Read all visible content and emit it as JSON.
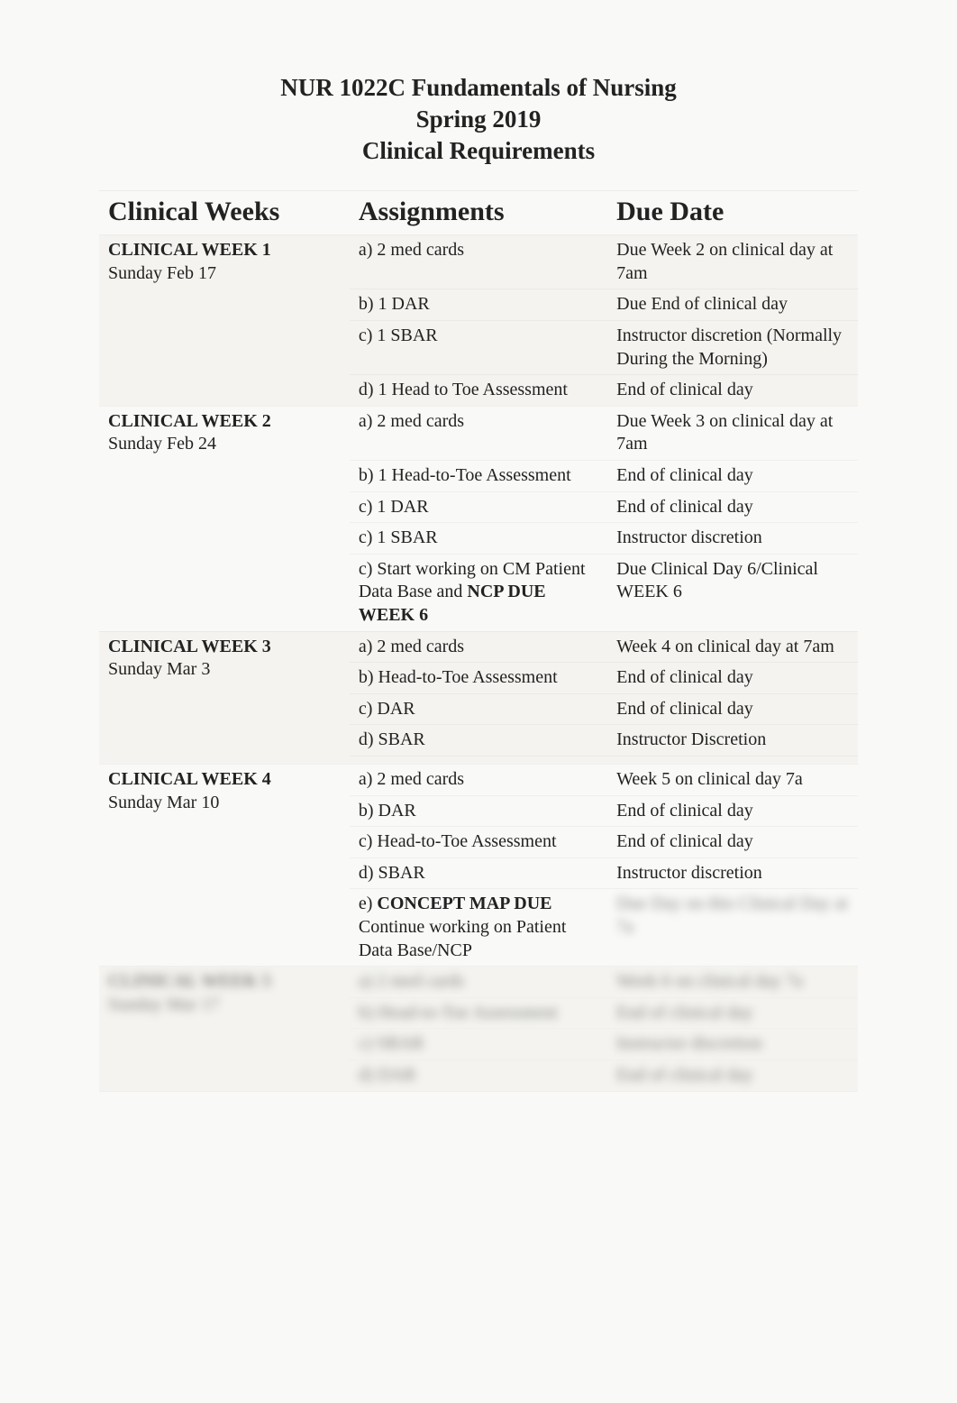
{
  "header": {
    "line1": "NUR 1022C Fundamentals of Nursing",
    "line2": "Spring 2019",
    "line3": "Clinical Requirements"
  },
  "columns": {
    "c1": "Clinical Weeks",
    "c2": "Assignments",
    "c3": "Due Date"
  },
  "weeks": {
    "w1": {
      "title": "CLINICAL WEEK 1",
      "date": "Sunday Feb 17",
      "rows": [
        {
          "a": "a) 2 med cards",
          "d": "Due Week 2 on clinical day at 7am"
        },
        {
          "a": "b) 1 DAR",
          "d": "Due End of clinical day"
        },
        {
          "a": "c) 1 SBAR",
          "d": "Instructor discretion (Normally During the Morning)"
        },
        {
          "a": "d) 1 Head to Toe Assessment",
          "d": "End of clinical day"
        }
      ]
    },
    "w2": {
      "title": "CLINICAL WEEK 2",
      "date": "Sunday Feb 24",
      "rows": [
        {
          "a": "a) 2 med cards",
          "d": "Due Week 3 on clinical day at 7am"
        },
        {
          "a": "b) 1 Head-to-Toe Assessment",
          "d": "End of clinical day"
        },
        {
          "a": "c) 1 DAR",
          "d": "End of clinical day"
        },
        {
          "a": "c) 1 SBAR",
          "d": "Instructor discretion"
        },
        {
          "a_pre": "c) Start working on CM Patient Data Base and ",
          "a_bold": "NCP DUE WEEK 6",
          "d": "Due Clinical Day 6/Clinical WEEK 6"
        }
      ]
    },
    "w3": {
      "title": "CLINICAL WEEK 3",
      "date": "Sunday Mar 3",
      "rows": [
        {
          "a": "a) 2 med cards",
          "d": "Week 4 on clinical day at 7am"
        },
        {
          "a": "b) Head-to-Toe Assessment",
          "d": "End of clinical day"
        },
        {
          "a": "c) DAR",
          "d": "End of clinical day"
        },
        {
          "a": "d) SBAR",
          "d": "Instructor Discretion"
        }
      ]
    },
    "w4": {
      "title": "CLINICAL WEEK 4",
      "date": "Sunday Mar 10",
      "rows": [
        {
          "a": "a) 2 med cards",
          "d": "Week 5 on clinical day 7a"
        },
        {
          "a": "b) DAR",
          "d": "End of clinical day"
        },
        {
          "a": "c) Head-to-Toe Assessment",
          "d": "End of clinical day"
        },
        {
          "a": "d) SBAR",
          "d": "Instructor discretion"
        },
        {
          "a_bold_pre": "e) ",
          "a_bold": "CONCEPT MAP DUE",
          "a_post": "Continue working on Patient Data Base/NCP",
          "d_blur": "Due Day on this Clinical Day at 7a"
        }
      ]
    },
    "w5": {
      "title_blur": "CLINICAL WEEK 5",
      "date_blur": "Sunday Mar 17",
      "rows": [
        {
          "a_blur": "a) 2 med cards",
          "d_blur": "Week 6 on clinical day 7a"
        },
        {
          "a_blur": "b) Head-to-Toe Assessment",
          "d_blur": "End of clinical day"
        },
        {
          "a_blur": "c) SBAR",
          "d_blur": "Instructor discretion"
        },
        {
          "a_blur": "d) DAR",
          "d_blur": "End of clinical day"
        }
      ]
    }
  },
  "style": {
    "background": "#f9f9f7",
    "alt_row_bg": "#f4f3ef",
    "title_fontsize": 27,
    "th_fontsize": 30,
    "td_fontsize": 20,
    "text_color": "#222222"
  }
}
